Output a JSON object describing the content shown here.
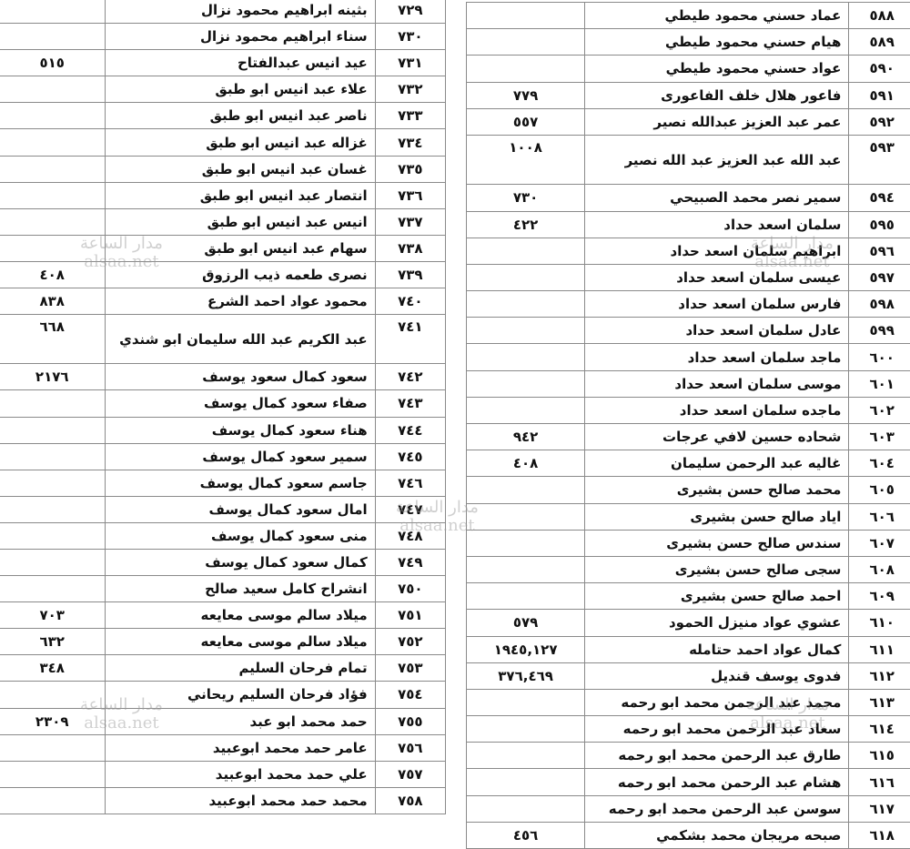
{
  "watermark": {
    "arabic": "مدار الساعة",
    "latin": "alsaa.net"
  },
  "left_table": {
    "rows": [
      {
        "no": "٧٢٩",
        "name": "بثينه ابراهيم محمود نزال",
        "value": ""
      },
      {
        "no": "٧٣٠",
        "name": "سناء ابراهيم محمود نزال",
        "value": ""
      },
      {
        "no": "٧٣١",
        "name": "عيد انيس عبدالفتاح",
        "value": "٥١٥"
      },
      {
        "no": "٧٣٢",
        "name": "علاء عبد انيس ابو طبق",
        "value": ""
      },
      {
        "no": "٧٣٣",
        "name": "ناصر عبد انيس ابو طبق",
        "value": ""
      },
      {
        "no": "٧٣٤",
        "name": "غزاله عبد انيس ابو طبق",
        "value": ""
      },
      {
        "no": "٧٣٥",
        "name": "غسان عبد انيس ابو طبق",
        "value": ""
      },
      {
        "no": "٧٣٦",
        "name": "انتصار عبد انيس ابو طبق",
        "value": ""
      },
      {
        "no": "٧٣٧",
        "name": "انيس عبد انيس ابو طبق",
        "value": ""
      },
      {
        "no": "٧٣٨",
        "name": "سهام عبد انيس ابو طبق",
        "value": ""
      },
      {
        "no": "٧٣٩",
        "name": "نصرى طعمه ذيب الرزوق",
        "value": "٤٠٨"
      },
      {
        "no": "٧٤٠",
        "name": "محمود عواد احمد الشرع",
        "value": "٨٣٨"
      },
      {
        "no": "٧٤١",
        "name": "عبد الكريم عبد الله سليمان ابو شندي",
        "value": "٦٦٨"
      },
      {
        "no": "٧٤٢",
        "name": "سعود كمال سعود يوسف",
        "value": "٢١٧٦"
      },
      {
        "no": "٧٤٣",
        "name": "صفاء سعود كمال يوسف",
        "value": ""
      },
      {
        "no": "٧٤٤",
        "name": "هناء سعود كمال يوسف",
        "value": ""
      },
      {
        "no": "٧٤٥",
        "name": "سمير سعود كمال يوسف",
        "value": ""
      },
      {
        "no": "٧٤٦",
        "name": "جاسم سعود كمال يوسف",
        "value": ""
      },
      {
        "no": "٧٤٧",
        "name": "امال سعود كمال يوسف",
        "value": ""
      },
      {
        "no": "٧٤٨",
        "name": "منى سعود كمال يوسف",
        "value": ""
      },
      {
        "no": "٧٤٩",
        "name": "كمال سعود كمال يوسف",
        "value": ""
      },
      {
        "no": "٧٥٠",
        "name": "انشراح كامل سعيد صالح",
        "value": ""
      },
      {
        "no": "٧٥١",
        "name": "ميلاد سالم موسى معايعه",
        "value": "٧٠٣"
      },
      {
        "no": "٧٥٢",
        "name": "ميلاد سالم موسى معايعه",
        "value": "٦٣٢"
      },
      {
        "no": "٧٥٣",
        "name": "تمام فرحان السليم",
        "value": "٣٤٨"
      },
      {
        "no": "٧٥٤",
        "name": "فؤاد فرحان السليم ريحاني",
        "value": ""
      },
      {
        "no": "٧٥٥",
        "name": "حمد محمد ابو عبد",
        "value": "٢٣٠٩"
      },
      {
        "no": "٧٥٦",
        "name": "عامر حمد محمد ابوعبيد",
        "value": ""
      },
      {
        "no": "٧٥٧",
        "name": "علي حمد محمد ابوعبيد",
        "value": ""
      },
      {
        "no": "٧٥٨",
        "name": "محمد حمد محمد ابوعبيد",
        "value": ""
      }
    ]
  },
  "right_table": {
    "rows": [
      {
        "no": "٥٨٨",
        "name": "عماد حسني محمود طيطي",
        "value": ""
      },
      {
        "no": "٥٨٩",
        "name": "هيام حسني محمود طيطي",
        "value": ""
      },
      {
        "no": "٥٩٠",
        "name": "عواد حسني محمود طيطي",
        "value": ""
      },
      {
        "no": "٥٩١",
        "name": "فاعور هلال خلف الفاعورى",
        "value": "٧٧٩"
      },
      {
        "no": "٥٩٢",
        "name": "عمر عبد العزيز عبدالله نصير",
        "value": "٥٥٧"
      },
      {
        "no": "٥٩٣",
        "name": "عبد الله عبد العزيز عبد الله نصير",
        "value": "١٠٠٨"
      },
      {
        "no": "٥٩٤",
        "name": "سمير نصر محمد الصبيحي",
        "value": "٧٣٠"
      },
      {
        "no": "٥٩٥",
        "name": "سلمان اسعد حداد",
        "value": "٤٢٢"
      },
      {
        "no": "٥٩٦",
        "name": "ابراهيم سلمان اسعد حداد",
        "value": ""
      },
      {
        "no": "٥٩٧",
        "name": "عيسى سلمان اسعد حداد",
        "value": ""
      },
      {
        "no": "٥٩٨",
        "name": "فارس سلمان اسعد حداد",
        "value": ""
      },
      {
        "no": "٥٩٩",
        "name": "عادل سلمان اسعد حداد",
        "value": ""
      },
      {
        "no": "٦٠٠",
        "name": "ماجد سلمان اسعد حداد",
        "value": ""
      },
      {
        "no": "٦٠١",
        "name": "موسى سلمان اسعد حداد",
        "value": ""
      },
      {
        "no": "٦٠٢",
        "name": "ماجده سلمان اسعد حداد",
        "value": ""
      },
      {
        "no": "٦٠٣",
        "name": "شحاده حسين لافي عرجات",
        "value": "٩٤٢"
      },
      {
        "no": "٦٠٤",
        "name": "غاليه عبد الرحمن سليمان",
        "value": "٤٠٨"
      },
      {
        "no": "٦٠٥",
        "name": "محمد صالح حسن بشيرى",
        "value": ""
      },
      {
        "no": "٦٠٦",
        "name": "اياد صالح حسن بشيرى",
        "value": ""
      },
      {
        "no": "٦٠٧",
        "name": "سندس صالح حسن بشيرى",
        "value": ""
      },
      {
        "no": "٦٠٨",
        "name": "سجى صالح حسن بشيرى",
        "value": ""
      },
      {
        "no": "٦٠٩",
        "name": "احمد صالح حسن بشيرى",
        "value": ""
      },
      {
        "no": "٦١٠",
        "name": "عشوي عواد منيزل الحمود",
        "value": "٥٧٩"
      },
      {
        "no": "٦١١",
        "name": "كمال عواد احمد حتامله",
        "value": "١٩٤٥,١٢٧"
      },
      {
        "no": "٦١٢",
        "name": "فدوى يوسف قنديل",
        "value": "٣٧٦,٤٦٩"
      },
      {
        "no": "٦١٣",
        "name": "محمد عبد الرحمن محمد ابو رحمه",
        "value": ""
      },
      {
        "no": "٦١٤",
        "name": "سعاد عبد الرحمن محمد ابو رحمه",
        "value": ""
      },
      {
        "no": "٦١٥",
        "name": "طارق عبد الرحمن محمد ابو رحمه",
        "value": ""
      },
      {
        "no": "٦١٦",
        "name": "هشام عبد الرحمن محمد ابو رحمه",
        "value": ""
      },
      {
        "no": "٦١٧",
        "name": "سوسن عبد الرحمن محمد ابو رحمه",
        "value": ""
      },
      {
        "no": "٦١٨",
        "name": "صبحه مريجان محمد بشكمي",
        "value": "٤٥٦"
      }
    ]
  }
}
